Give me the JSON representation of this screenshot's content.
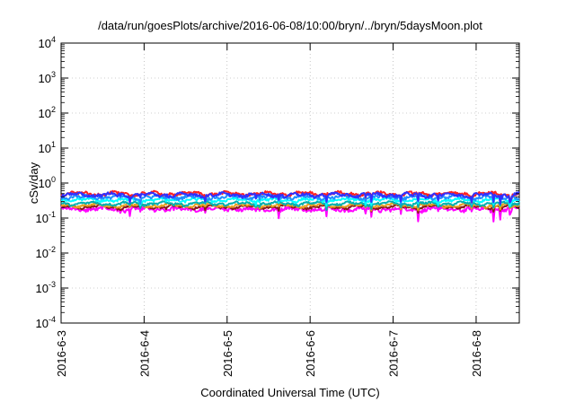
{
  "chart_data": {
    "type": "line",
    "title": "/data/run/goesPlots/archive/2016-06-08/10:00/bryn/../bryn/5daysMoon.plot",
    "xlabel": "Coordinated Universal Time (UTC)",
    "ylabel": "cSv/day",
    "yscale": "log",
    "ylim": [
      0.0001,
      10000
    ],
    "xlim": [
      0,
      5.52
    ],
    "x_ticks": [
      {
        "value": 0,
        "label": "2016-6-3"
      },
      {
        "value": 1,
        "label": "2016-6-4"
      },
      {
        "value": 2,
        "label": "2016-6-5"
      },
      {
        "value": 3,
        "label": "2016-6-6"
      },
      {
        "value": 4,
        "label": "2016-6-7"
      },
      {
        "value": 5,
        "label": "2016-6-8"
      }
    ],
    "y_ticks": [
      {
        "value": 0.0001,
        "base": "10",
        "exp": "-4"
      },
      {
        "value": 0.001,
        "base": "10",
        "exp": "-3"
      },
      {
        "value": 0.01,
        "base": "10",
        "exp": "-2"
      },
      {
        "value": 0.1,
        "base": "10",
        "exp": "-1"
      },
      {
        "value": 1,
        "base": "10",
        "exp": "0"
      },
      {
        "value": 10,
        "base": "10",
        "exp": "1"
      },
      {
        "value": 100,
        "base": "10",
        "exp": "2"
      },
      {
        "value": 1000,
        "base": "10",
        "exp": "3"
      },
      {
        "value": 10000,
        "base": "10",
        "exp": "4"
      }
    ],
    "grid": true,
    "legend": "none",
    "series": [
      {
        "color": "#ff00ff",
        "base": 0.18,
        "noise": 0.22,
        "dip": 0.45,
        "phase": 0.6
      },
      {
        "color": "#8b1a1a",
        "base": 0.21,
        "noise": 0.12,
        "dip": 0.25,
        "phase": 1.3
      },
      {
        "color": "#e8a020",
        "base": 0.23,
        "noise": 0.12,
        "dip": 0.22,
        "phase": 2.1
      },
      {
        "color": "#00b0b0",
        "base": 0.26,
        "noise": 0.12,
        "dip": 0.25,
        "phase": 2.9
      },
      {
        "color": "#00ffff",
        "base": 0.33,
        "noise": 0.15,
        "dip": 0.3,
        "phase": 3.4
      },
      {
        "color": "#1e90ff",
        "base": 0.4,
        "noise": 0.18,
        "dip": 0.35,
        "phase": 4.2
      },
      {
        "color": "#ff2020",
        "base": 0.5,
        "noise": 0.15,
        "dip": 0.35,
        "phase": 4.9
      },
      {
        "color": "#3030ff",
        "base": 0.46,
        "noise": 0.18,
        "dip": 0.38,
        "phase": 5.7
      }
    ],
    "samples": 480
  }
}
